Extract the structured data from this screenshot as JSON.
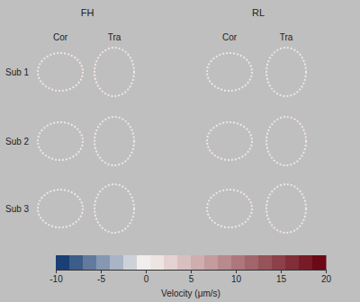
{
  "chart_data": {
    "type": "heatmap",
    "column_groups": [
      "FH",
      "RL"
    ],
    "columns": [
      "Cor",
      "Tra",
      "Cor",
      "Tra"
    ],
    "rows": [
      "Sub 1",
      "Sub 2",
      "Sub 3"
    ],
    "colorbar": {
      "label": "Velocity (μm/s)",
      "range": [
        -10,
        20
      ],
      "midpoint": 0,
      "ticks": [
        -10,
        -5,
        0,
        5,
        10,
        15,
        20
      ],
      "colors": [
        "#08306b",
        "#f7f4f0",
        "#67000d"
      ]
    }
  }
}
